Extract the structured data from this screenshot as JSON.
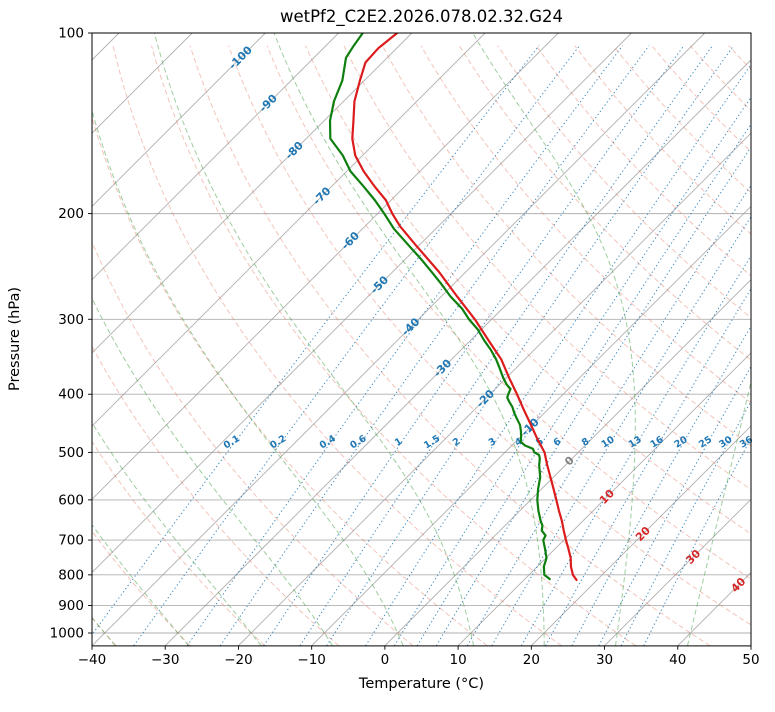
{
  "chart_data": {
    "type": "skewt_log_p",
    "title": "wetPf2_C2E2.2026.078.02.32.G24",
    "xlabel": "Temperature (°C)",
    "ylabel": "Pressure (hPa)",
    "xlim": [
      -40,
      50
    ],
    "pressure_lim": [
      100,
      1050
    ],
    "x_ticks": [
      -40,
      -30,
      -20,
      -10,
      0,
      10,
      20,
      30,
      40,
      50
    ],
    "pressure_ticks": [
      100,
      200,
      300,
      400,
      500,
      600,
      700,
      800,
      900,
      1000
    ],
    "skew_deg": 45,
    "grid": true,
    "legend": "none",
    "isotherms": {
      "start": -160,
      "end": 50,
      "step": 10,
      "color": "#9c9c9c"
    },
    "isotherm_labels": {
      "color_negative": "#1f77b4",
      "color_zero": "#808080",
      "color_positive": "#d62728",
      "items": [
        {
          "t": -100,
          "p": 110
        },
        {
          "t": -90,
          "p": 131
        },
        {
          "t": -80,
          "p": 157
        },
        {
          "t": -70,
          "p": 187
        },
        {
          "t": -60,
          "p": 222
        },
        {
          "t": -50,
          "p": 263
        },
        {
          "t": -40,
          "p": 309
        },
        {
          "t": -30,
          "p": 362
        },
        {
          "t": -20,
          "p": 407
        },
        {
          "t": -10,
          "p": 454
        },
        {
          "t": 0,
          "p": 517
        },
        {
          "t": 10,
          "p": 593
        },
        {
          "t": 20,
          "p": 684
        },
        {
          "t": 30,
          "p": 747
        },
        {
          "t": 40,
          "p": 832
        }
      ]
    },
    "dry_adiabats": {
      "start": -40,
      "end": 200,
      "step": 10,
      "color": "#e2725b"
    },
    "moist_adiabats": {
      "start": -40,
      "end": 40,
      "step": 10,
      "color": "#3f9b3f"
    },
    "mixing_ratio": {
      "values": [
        0.1,
        0.2,
        0.4,
        0.6,
        1,
        1.5,
        2,
        3,
        4,
        5,
        6,
        8,
        10,
        13,
        16,
        20,
        25,
        30,
        36
      ],
      "label_pressure": 485,
      "color": "#1f77b4"
    },
    "series": [
      {
        "name": "temperature",
        "color": "#dc1c1c",
        "width": 2.2,
        "points": [
          [
            816,
            17.2
          ],
          [
            800,
            16.0
          ],
          [
            775,
            14.6
          ],
          [
            750,
            13.4
          ],
          [
            725,
            11.9
          ],
          [
            700,
            10.3
          ],
          [
            675,
            8.7
          ],
          [
            650,
            7.1
          ],
          [
            625,
            5.3
          ],
          [
            600,
            3.5
          ],
          [
            575,
            1.6
          ],
          [
            550,
            -0.4
          ],
          [
            525,
            -2.5
          ],
          [
            500,
            -4.6
          ],
          [
            475,
            -7.4
          ],
          [
            450,
            -10.2
          ],
          [
            425,
            -13.2
          ],
          [
            400,
            -16.3
          ],
          [
            375,
            -19.7
          ],
          [
            350,
            -23.2
          ],
          [
            325,
            -27.6
          ],
          [
            300,
            -32.3
          ],
          [
            275,
            -37.8
          ],
          [
            250,
            -43.7
          ],
          [
            225,
            -50.7
          ],
          [
            210,
            -55.2
          ],
          [
            200,
            -58.0
          ],
          [
            190,
            -60.7
          ],
          [
            180,
            -64.2
          ],
          [
            170,
            -67.7
          ],
          [
            160,
            -71.0
          ],
          [
            150,
            -73.7
          ],
          [
            140,
            -76.0
          ],
          [
            130,
            -78.5
          ],
          [
            120,
            -80.6
          ],
          [
            112,
            -82.3
          ],
          [
            106,
            -82.5
          ],
          [
            100,
            -82.0
          ]
        ]
      },
      {
        "name": "dewpoint",
        "color": "#0e7f0e",
        "width": 2.2,
        "points": [
          [
            813,
            13.4
          ],
          [
            800,
            12.1
          ],
          [
            775,
            10.9
          ],
          [
            750,
            10.1
          ],
          [
            725,
            8.7
          ],
          [
            700,
            7.2
          ],
          [
            688,
            6.9
          ],
          [
            675,
            5.7
          ],
          [
            662,
            5.1
          ],
          [
            650,
            4.2
          ],
          [
            625,
            2.5
          ],
          [
            600,
            0.9
          ],
          [
            575,
            -0.5
          ],
          [
            550,
            -1.8
          ],
          [
            525,
            -3.6
          ],
          [
            512,
            -4.4
          ],
          [
            505,
            -5.0
          ],
          [
            500,
            -6.0
          ],
          [
            493,
            -6.7
          ],
          [
            487,
            -8.2
          ],
          [
            480,
            -9.3
          ],
          [
            470,
            -10.0
          ],
          [
            460,
            -10.8
          ],
          [
            450,
            -11.7
          ],
          [
            440,
            -12.9
          ],
          [
            430,
            -14.1
          ],
          [
            420,
            -15.2
          ],
          [
            412,
            -16.3
          ],
          [
            405,
            -17.2
          ],
          [
            398,
            -17.6
          ],
          [
            392,
            -17.9
          ],
          [
            385,
            -19.1
          ],
          [
            375,
            -20.5
          ],
          [
            360,
            -22.5
          ],
          [
            350,
            -23.9
          ],
          [
            337,
            -26.0
          ],
          [
            325,
            -28.2
          ],
          [
            312,
            -30.5
          ],
          [
            300,
            -33.1
          ],
          [
            288,
            -35.5
          ],
          [
            275,
            -38.7
          ],
          [
            262,
            -41.7
          ],
          [
            250,
            -44.7
          ],
          [
            238,
            -47.9
          ],
          [
            225,
            -51.7
          ],
          [
            212,
            -55.7
          ],
          [
            200,
            -59.1
          ],
          [
            190,
            -62.2
          ],
          [
            180,
            -65.7
          ],
          [
            170,
            -69.5
          ],
          [
            160,
            -72.7
          ],
          [
            150,
            -76.7
          ],
          [
            140,
            -79.2
          ],
          [
            130,
            -81.3
          ],
          [
            120,
            -83.0
          ],
          [
            110,
            -85.6
          ],
          [
            105,
            -86.2
          ],
          [
            100,
            -86.7
          ]
        ]
      }
    ]
  }
}
